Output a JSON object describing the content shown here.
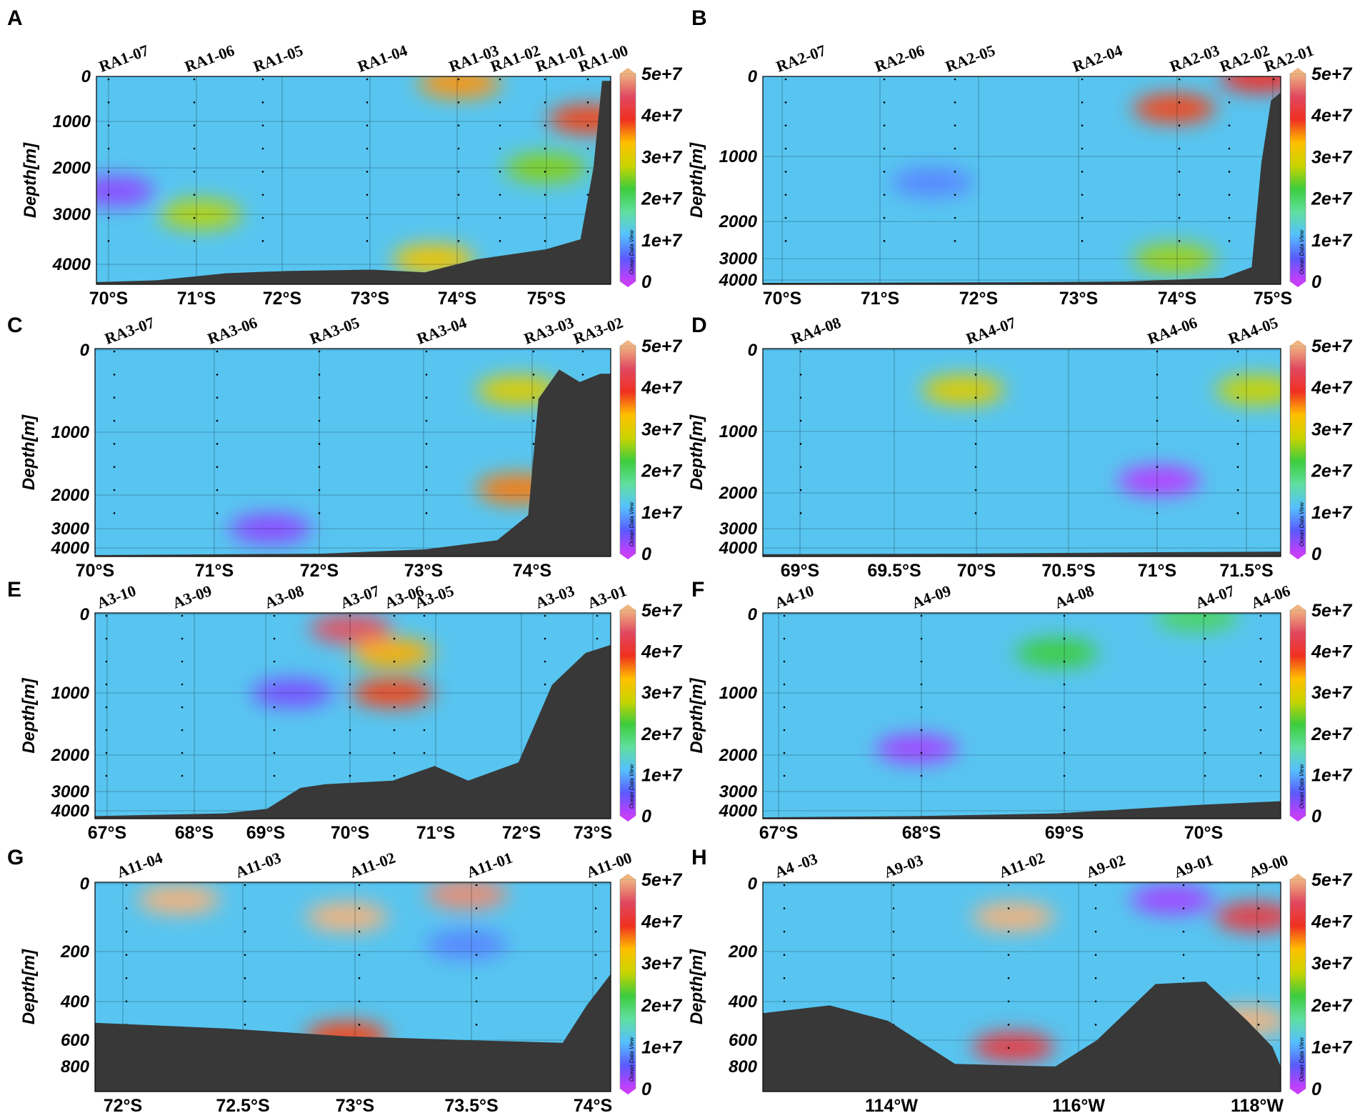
{
  "colorbar": {
    "ticks": [
      "0",
      "1e+7",
      "2e+7",
      "3e+7",
      "4e+7",
      "5e+7"
    ],
    "watermark": "Ocean Data View",
    "colors": [
      "#c83cff",
      "#5a5aff",
      "#55c0ff",
      "#5fe0a0",
      "#3dcc3d",
      "#c8d400",
      "#ffc000",
      "#f03020",
      "#e04860",
      "#f0b480"
    ]
  },
  "ylabel": "Depth[m]",
  "terrain_color": "#383838",
  "panels": [
    {
      "id": "A",
      "letter": "A",
      "stations": [
        "RA1-07",
        "RA1-06",
        "RA1-05",
        "RA1-04",
        "RA1-03",
        "RA1-02",
        "RA1-01",
        "RA1-00"
      ],
      "yticks": [
        "0",
        "1000",
        "2000",
        "3000",
        "4000"
      ],
      "xticks": [
        "70°S",
        "71°S",
        "72°S",
        "73°S",
        "74°S",
        "75°S"
      ]
    },
    {
      "id": "B",
      "letter": "B",
      "stations": [
        "RA2-07",
        "RA2-06",
        "RA2-05",
        "RA2-04",
        "RA2-03",
        "RA2-02",
        "RA2-01"
      ],
      "yticks": [
        "0",
        "1000",
        "2000",
        "3000",
        "4000"
      ],
      "xticks": [
        "70°S",
        "71°S",
        "72°S",
        "73°S",
        "74°S",
        "75°S"
      ]
    },
    {
      "id": "C",
      "letter": "C",
      "stations": [
        "RA3-07",
        "RA3-06",
        "RA3-05",
        "RA3-04",
        "RA3-03",
        "RA3-02"
      ],
      "yticks": [
        "0",
        "1000",
        "2000",
        "3000",
        "4000"
      ],
      "xticks": [
        "70°S",
        "71°S",
        "72°S",
        "73°S",
        "74°S"
      ]
    },
    {
      "id": "D",
      "letter": "D",
      "stations": [
        "RA4-08",
        "RA4-07",
        "RA4-06",
        "RA4-05"
      ],
      "yticks": [
        "0",
        "1000",
        "2000",
        "3000",
        "4000"
      ],
      "xticks": [
        "69°S",
        "69.5°S",
        "70°S",
        "70.5°S",
        "71°S",
        "71.5°S"
      ]
    },
    {
      "id": "E",
      "letter": "E",
      "stations": [
        "A3-10",
        "A3-09",
        "A3-08",
        "A3-07",
        "A3-06",
        "A3-05",
        "A3-03",
        "A3-01"
      ],
      "yticks": [
        "0",
        "1000",
        "2000",
        "3000",
        "4000"
      ],
      "xticks": [
        "67°S",
        "68°S",
        "69°S",
        "70°S",
        "71°S",
        "72°S",
        "73°S"
      ]
    },
    {
      "id": "F",
      "letter": "F",
      "stations": [
        "A4-10",
        "A4-09",
        "A4-08",
        "A4-07",
        "A4-06"
      ],
      "yticks": [
        "0",
        "1000",
        "2000",
        "3000",
        "4000"
      ],
      "xticks": [
        "67°S",
        "68°S",
        "69°S",
        "70°S"
      ]
    },
    {
      "id": "G",
      "letter": "G",
      "stations": [
        "A11-04",
        "A11-03",
        "A11-02",
        "A11-01",
        "A11-00"
      ],
      "yticks": [
        "0",
        "200",
        "400",
        "600",
        "800"
      ],
      "xticks": [
        "72°S",
        "72.5°S",
        "73°S",
        "73.5°S",
        "74°S"
      ]
    },
    {
      "id": "H",
      "letter": "H",
      "stations": [
        "A4 -03",
        "A9-03",
        "A11-02",
        "A9-02",
        "A9-01",
        "A9-00"
      ],
      "yticks": [
        "0",
        "200",
        "400",
        "600",
        "800"
      ],
      "xticks": [
        "114°W",
        "116°W",
        "118°W"
      ]
    }
  ],
  "chart_data": [
    {
      "type": "heatmap",
      "panel": "A",
      "x_axis": "latitude (°S)",
      "xlim": [
        69.8,
        75.75
      ],
      "y_axis": "Depth[m]",
      "ylim": [
        0,
        4450
      ],
      "yticks": [
        0,
        1000,
        2000,
        3000,
        4000
      ],
      "colorbar": {
        "min": 0,
        "max": 50000000,
        "ticks": [
          0,
          10000000,
          20000000,
          30000000,
          40000000,
          50000000
        ]
      },
      "stations": [
        {
          "name": "RA1-07",
          "x": 70.0
        },
        {
          "name": "RA1-06",
          "x": 71.0
        },
        {
          "name": "RA1-05",
          "x": 71.75
        },
        {
          "name": "RA1-04",
          "x": 73.1
        },
        {
          "name": "RA1-03",
          "x": 74.0
        },
        {
          "name": "RA1-02",
          "x": 74.5
        },
        {
          "name": "RA1-01",
          "x": 75.0
        },
        {
          "name": "RA1-00",
          "x": 75.5
        }
      ],
      "features": [
        {
          "x": 74.0,
          "depth": 150,
          "value": 35000000
        },
        {
          "x": 75.5,
          "depth": 950,
          "value": 38000000
        },
        {
          "x": 73.7,
          "depth": 3900,
          "value": 32000000
        },
        {
          "x": 71.0,
          "depth": 3000,
          "value": 27000000
        },
        {
          "x": 75.0,
          "depth": 2000,
          "value": 25000000
        },
        {
          "x": 70.0,
          "depth": 2500,
          "value": 3000000
        }
      ],
      "bathymetry": [
        [
          69.8,
          4400
        ],
        [
          70.5,
          4360
        ],
        [
          71.3,
          4200
        ],
        [
          72.0,
          4150
        ],
        [
          73.0,
          4120
        ],
        [
          73.6,
          4180
        ],
        [
          74.2,
          3900
        ],
        [
          75.0,
          3700
        ],
        [
          75.4,
          3500
        ],
        [
          75.55,
          2000
        ],
        [
          75.65,
          100
        ],
        [
          75.75,
          100
        ]
      ]
    },
    {
      "type": "heatmap",
      "panel": "B",
      "x_axis": "latitude (°S)",
      "xlim": [
        69.75,
        75.1
      ],
      "y_axis": "Depth[m]",
      "ylim": [
        0,
        4300
      ],
      "yticks": [
        0,
        1000,
        2000,
        3000,
        4000
      ],
      "colorbar": {
        "min": 0,
        "max": 50000000,
        "ticks": [
          0,
          10000000,
          20000000,
          30000000,
          40000000,
          50000000
        ]
      },
      "stations": [
        {
          "name": "RA2-07",
          "x": 70.0
        },
        {
          "name": "RA2-06",
          "x": 71.0
        },
        {
          "name": "RA2-05",
          "x": 71.7
        },
        {
          "name": "RA2-04",
          "x": 73.0
        },
        {
          "name": "RA2-03",
          "x": 74.0
        },
        {
          "name": "RA2-02",
          "x": 74.5
        },
        {
          "name": "RA2-01",
          "x": 74.9
        }
      ],
      "features": [
        {
          "x": 74.0,
          "depth": 400,
          "value": 38000000
        },
        {
          "x": 74.0,
          "depth": 3000,
          "value": 26000000
        },
        {
          "x": 74.9,
          "depth": 20,
          "value": 40000000
        },
        {
          "x": 71.5,
          "depth": 1400,
          "value": 8000000
        }
      ],
      "bathymetry": [
        [
          69.75,
          4200
        ],
        [
          71.0,
          4180
        ],
        [
          72.5,
          4150
        ],
        [
          73.5,
          4100
        ],
        [
          74.5,
          3900
        ],
        [
          74.8,
          3400
        ],
        [
          74.9,
          1100
        ],
        [
          75.0,
          300
        ],
        [
          75.1,
          200
        ]
      ]
    },
    {
      "type": "heatmap",
      "panel": "C",
      "x_axis": "latitude (°S)",
      "xlim": [
        69.8,
        74.8
      ],
      "y_axis": "Depth[m]",
      "ylim": [
        0,
        4300
      ],
      "yticks": [
        0,
        1000,
        2000,
        3000,
        4000
      ],
      "colorbar": {
        "min": 0,
        "max": 50000000,
        "ticks": [
          0,
          10000000,
          20000000,
          30000000,
          40000000,
          50000000
        ]
      },
      "stations": [
        {
          "name": "RA3-07",
          "x": 70.0
        },
        {
          "name": "RA3-06",
          "x": 71.0
        },
        {
          "name": "RA3-05",
          "x": 72.0
        },
        {
          "name": "RA3-04",
          "x": 73.0
        },
        {
          "name": "RA3-03",
          "x": 74.0
        },
        {
          "name": "RA3-02",
          "x": 74.5
        }
      ],
      "features": [
        {
          "x": 73.9,
          "depth": 1900,
          "value": 36000000
        },
        {
          "x": 73.9,
          "depth": 500,
          "value": 30000000
        },
        {
          "x": 71.5,
          "depth": 3000,
          "value": 3000000
        }
      ],
      "bathymetry": [
        [
          69.8,
          4250
        ],
        [
          72.0,
          4200
        ],
        [
          73.0,
          4050
        ],
        [
          73.7,
          3600
        ],
        [
          74.0,
          2600
        ],
        [
          74.1,
          600
        ],
        [
          74.3,
          250
        ],
        [
          74.5,
          400
        ],
        [
          74.7,
          300
        ],
        [
          74.8,
          300
        ]
      ]
    },
    {
      "type": "heatmap",
      "panel": "D",
      "x_axis": "latitude (°S)",
      "xlim": [
        68.98,
        71.62
      ],
      "y_axis": "Depth[m]",
      "ylim": [
        0,
        4300
      ],
      "yticks": [
        0,
        1000,
        2000,
        3000,
        4000
      ],
      "colorbar": {
        "min": 0,
        "max": 50000000,
        "ticks": [
          0,
          10000000,
          20000000,
          30000000,
          40000000,
          50000000
        ]
      },
      "stations": [
        {
          "name": "RA4-08",
          "x": 69.0
        },
        {
          "name": "RA4-07",
          "x": 69.98
        },
        {
          "name": "RA4-06",
          "x": 70.98
        },
        {
          "name": "RA4-05",
          "x": 71.45
        }
      ],
      "features": [
        {
          "x": 70.0,
          "depth": 500,
          "value": 30000000
        },
        {
          "x": 71.5,
          "depth": 500,
          "value": 28000000
        },
        {
          "x": 71.0,
          "depth": 1800,
          "value": 1000000
        }
      ],
      "bathymetry": [
        [
          68.98,
          4220
        ],
        [
          70.0,
          4200
        ],
        [
          71.0,
          4150
        ],
        [
          71.62,
          4130
        ]
      ]
    },
    {
      "type": "heatmap",
      "panel": "E",
      "x_axis": "latitude (°S)",
      "xlim": [
        66.95,
        73.1
      ],
      "y_axis": "Depth[m]",
      "ylim": [
        0,
        4300
      ],
      "yticks": [
        0,
        1000,
        2000,
        3000,
        4000
      ],
      "colorbar": {
        "min": 0,
        "max": 50000000,
        "ticks": [
          0,
          10000000,
          20000000,
          30000000,
          40000000,
          50000000
        ]
      },
      "stations": [
        {
          "name": "A3-10",
          "x": 67.0
        },
        {
          "name": "A3-09",
          "x": 68.0
        },
        {
          "name": "A3-08",
          "x": 69.0
        },
        {
          "name": "A3-07",
          "x": 70.0
        },
        {
          "name": "A3-06",
          "x": 70.5
        },
        {
          "name": "A3-05",
          "x": 70.85
        },
        {
          "name": "A3-03",
          "x": 72.4
        },
        {
          "name": "A3-01",
          "x": 73.0
        }
      ],
      "features": [
        {
          "x": 70.0,
          "depth": 200,
          "value": 45000000
        },
        {
          "x": 70.5,
          "depth": 1000,
          "value": 38000000
        },
        {
          "x": 70.5,
          "depth": 500,
          "value": 34000000
        },
        {
          "x": 69.3,
          "depth": 1000,
          "value": 4000000
        }
      ],
      "bathymetry": [
        [
          66.95,
          4200
        ],
        [
          68.5,
          4100
        ],
        [
          69.0,
          3900
        ],
        [
          69.4,
          2900
        ],
        [
          69.7,
          2800
        ],
        [
          70.5,
          2700
        ],
        [
          71.0,
          2300
        ],
        [
          71.4,
          2700
        ],
        [
          72.0,
          2200
        ],
        [
          72.4,
          900
        ],
        [
          72.8,
          500
        ],
        [
          73.1,
          400
        ]
      ]
    },
    {
      "type": "heatmap",
      "panel": "F",
      "x_axis": "latitude (°S)",
      "xlim": [
        66.9,
        70.6
      ],
      "y_axis": "Depth[m]",
      "ylim": [
        0,
        4300
      ],
      "yticks": [
        0,
        1000,
        2000,
        3000,
        4000
      ],
      "colorbar": {
        "min": 0,
        "max": 50000000,
        "ticks": [
          0,
          10000000,
          20000000,
          30000000,
          40000000,
          50000000
        ]
      },
      "stations": [
        {
          "name": "A4-10",
          "x": 67.0
        },
        {
          "name": "A4-09",
          "x": 68.0
        },
        {
          "name": "A4-08",
          "x": 69.0
        },
        {
          "name": "A4-07",
          "x": 70.0
        },
        {
          "name": "A4-06",
          "x": 70.4
        }
      ],
      "features": [
        {
          "x": 69.0,
          "depth": 500,
          "value": 22000000
        },
        {
          "x": 68.0,
          "depth": 1900,
          "value": 2000000
        },
        {
          "x": 70.0,
          "depth": 50,
          "value": 20000000
        }
      ],
      "bathymetry": [
        [
          66.9,
          4250
        ],
        [
          68.0,
          4200
        ],
        [
          69.0,
          4100
        ],
        [
          70.0,
          3700
        ],
        [
          70.6,
          3500
        ]
      ]
    },
    {
      "type": "heatmap",
      "panel": "G",
      "x_axis": "latitude (°S)",
      "xlim": [
        71.95,
        74.1
      ],
      "y_axis": "Depth[m]",
      "ylim": [
        0,
        820
      ],
      "yticks": [
        0,
        200,
        400,
        600,
        800
      ],
      "colorbar": {
        "min": 0,
        "max": 50000000,
        "ticks": [
          0,
          10000000,
          20000000,
          30000000,
          40000000,
          50000000
        ]
      },
      "stations": [
        {
          "name": "A11-04",
          "x": 72.0
        },
        {
          "name": "A11-03",
          "x": 72.5
        },
        {
          "name": "A11-02",
          "x": 73.0
        },
        {
          "name": "A11-01",
          "x": 73.5
        },
        {
          "name": "A11-00",
          "x": 74.0
        }
      ],
      "features": [
        {
          "x": 72.3,
          "depth": 50,
          "value": 50000000
        },
        {
          "x": 73.0,
          "depth": 100,
          "value": 50000000
        },
        {
          "x": 73.5,
          "depth": 35,
          "value": 48000000
        },
        {
          "x": 73.0,
          "depth": 580,
          "value": 38000000
        },
        {
          "x": 73.5,
          "depth": 180,
          "value": 8000000
        }
      ],
      "bathymetry": [
        [
          71.95,
          510
        ],
        [
          72.5,
          540
        ],
        [
          73.0,
          580
        ],
        [
          73.5,
          600
        ],
        [
          73.9,
          620
        ],
        [
          74.0,
          420
        ],
        [
          74.1,
          290
        ]
      ]
    },
    {
      "type": "heatmap",
      "panel": "H",
      "x_axis": "longitude (°W)",
      "xlim": [
        112.0,
        118.2
      ],
      "y_axis": "Depth[m]",
      "ylim": [
        0,
        820
      ],
      "yticks": [
        0,
        200,
        400,
        600,
        800
      ],
      "colorbar": {
        "min": 0,
        "max": 50000000,
        "ticks": [
          0,
          10000000,
          20000000,
          30000000,
          40000000,
          50000000
        ]
      },
      "stations": [
        {
          "name": "A4 -03",
          "x": 112.2
        },
        {
          "name": "A9-03",
          "x": 113.5
        },
        {
          "name": "A11-02",
          "x": 114.9
        },
        {
          "name": "A9-02",
          "x": 115.9
        },
        {
          "name": "A9-01",
          "x": 116.9
        },
        {
          "name": "A9-00",
          "x": 117.9
        }
      ],
      "features": [
        {
          "x": 115.0,
          "depth": 100,
          "value": 50000000
        },
        {
          "x": 115.0,
          "depth": 650,
          "value": 42000000
        },
        {
          "x": 117.8,
          "depth": 500,
          "value": 50000000
        },
        {
          "x": 116.9,
          "depth": 50,
          "value": 2000000
        },
        {
          "x": 117.9,
          "depth": 100,
          "value": 42000000
        }
      ],
      "bathymetry": [
        [
          112.0,
          460
        ],
        [
          112.8,
          420
        ],
        [
          113.5,
          500
        ],
        [
          114.3,
          780
        ],
        [
          115.5,
          800
        ],
        [
          116.0,
          600
        ],
        [
          116.7,
          330
        ],
        [
          117.3,
          320
        ],
        [
          117.8,
          500
        ],
        [
          118.1,
          650
        ],
        [
          118.2,
          800
        ]
      ]
    }
  ]
}
